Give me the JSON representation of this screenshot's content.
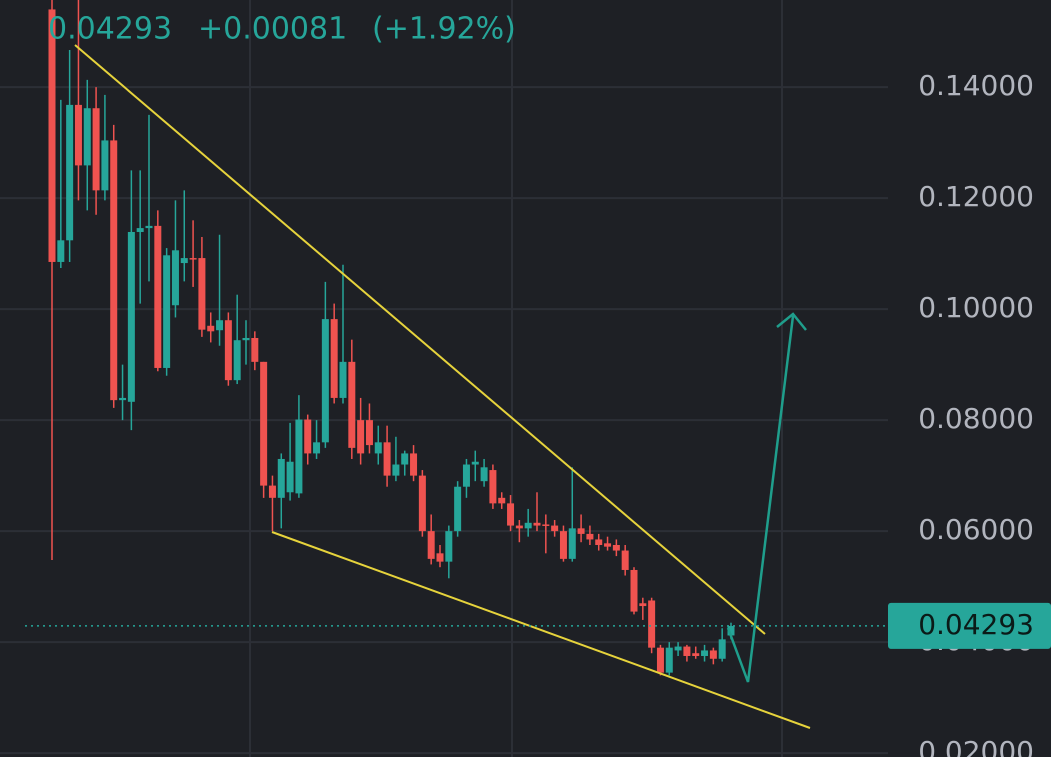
{
  "chart_data": {
    "type": "candlestick",
    "last_price": 0.04293,
    "change": "+0.00081",
    "change_pct": "(+1.92%)",
    "up_color": "#26a69a",
    "down_color": "#ef5350",
    "ylim": [
      0.0193,
      0.1557
    ],
    "yticks": [
      {
        "value": 0.02,
        "label": "0.02000"
      },
      {
        "value": 0.04,
        "label": "0.04000"
      },
      {
        "value": 0.06,
        "label": "0.06000"
      },
      {
        "value": 0.08,
        "label": "0.08000"
      },
      {
        "value": 0.1,
        "label": "0.10000"
      },
      {
        "value": 0.12,
        "label": "0.12000"
      },
      {
        "value": 0.14,
        "label": "0.14000"
      }
    ],
    "grid": true,
    "open": [
      0.154,
      0.1085,
      0.1124,
      0.1368,
      0.1259,
      0.1362,
      0.1214,
      0.1304,
      0.0836,
      0.0833,
      0.1139,
      0.1146,
      0.115,
      0.0894,
      0.1007,
      0.1083,
      0.1092,
      0.1092,
      0.097,
      0.0962,
      0.098,
      0.0872,
      0.0944,
      0.0948,
      0.0905,
      0.0682,
      0.066,
      0.067,
      0.0668,
      0.0801,
      0.074,
      0.076,
      0.0982,
      0.084,
      0.0905,
      0.08,
      0.08,
      0.074,
      0.076,
      0.07,
      0.072,
      0.074,
      0.07,
      0.06,
      0.056,
      0.0545,
      0.06,
      0.068,
      0.072,
      0.069,
      0.071,
      0.066,
      0.065,
      0.061,
      0.0605,
      0.0615,
      0.0612,
      0.061,
      0.06,
      0.055,
      0.0605,
      0.0595,
      0.0585,
      0.0578,
      0.0575,
      0.0565,
      0.053,
      0.047,
      0.0475,
      0.039,
      0.0345,
      0.0385,
      0.0392,
      0.038,
      0.0375,
      0.0385,
      0.037,
      0.0412
    ],
    "high": [
      0.1557,
      0.1377,
      0.1467,
      0.1557,
      0.1413,
      0.14,
      0.1386,
      0.1332,
      0.09,
      0.125,
      0.125,
      0.135,
      0.1178,
      0.111,
      0.1196,
      0.1214,
      0.116,
      0.113,
      0.0994,
      0.1134,
      0.0994,
      0.1026,
      0.098,
      0.096,
      0.0905,
      0.07,
      0.074,
      0.0795,
      0.0845,
      0.081,
      0.08,
      0.1049,
      0.101,
      0.108,
      0.0945,
      0.084,
      0.083,
      0.079,
      0.079,
      0.077,
      0.0745,
      0.0755,
      0.071,
      0.063,
      0.0575,
      0.061,
      0.069,
      0.073,
      0.0745,
      0.073,
      0.072,
      0.067,
      0.0665,
      0.062,
      0.064,
      0.067,
      0.063,
      0.062,
      0.061,
      0.0715,
      0.063,
      0.061,
      0.0595,
      0.059,
      0.0585,
      0.0575,
      0.0535,
      0.048,
      0.048,
      0.0395,
      0.04,
      0.04,
      0.0395,
      0.0392,
      0.0395,
      0.039,
      0.0425,
      0.0435
    ],
    "low": [
      0.0548,
      0.1074,
      0.1085,
      0.1196,
      0.1178,
      0.117,
      0.1196,
      0.0822,
      0.08,
      0.0782,
      0.101,
      0.105,
      0.0888,
      0.088,
      0.0985,
      0.105,
      0.104,
      0.095,
      0.094,
      0.0934,
      0.0862,
      0.0865,
      0.09,
      0.089,
      0.066,
      0.06,
      0.0605,
      0.0655,
      0.066,
      0.072,
      0.073,
      0.075,
      0.083,
      0.083,
      0.073,
      0.072,
      0.074,
      0.072,
      0.068,
      0.069,
      0.07,
      0.069,
      0.059,
      0.054,
      0.0535,
      0.0515,
      0.059,
      0.066,
      0.069,
      0.068,
      0.064,
      0.064,
      0.06,
      0.058,
      0.059,
      0.06,
      0.056,
      0.059,
      0.0545,
      0.0545,
      0.058,
      0.0575,
      0.0565,
      0.0565,
      0.0555,
      0.052,
      0.045,
      0.044,
      0.038,
      0.034,
      0.034,
      0.0375,
      0.0365,
      0.037,
      0.0365,
      0.036,
      0.0365,
      0.0405
    ],
    "close": [
      0.1085,
      0.1124,
      0.1368,
      0.1259,
      0.1362,
      0.1214,
      0.1304,
      0.0836,
      0.084,
      0.1139,
      0.1146,
      0.115,
      0.0894,
      0.1097,
      0.1106,
      0.1092,
      0.109,
      0.0963,
      0.096,
      0.098,
      0.0872,
      0.0944,
      0.0948,
      0.0905,
      0.0682,
      0.066,
      0.073,
      0.0725,
      0.0801,
      0.074,
      0.076,
      0.0982,
      0.084,
      0.0905,
      0.075,
      0.074,
      0.0755,
      0.076,
      0.07,
      0.072,
      0.074,
      0.07,
      0.06,
      0.055,
      0.0545,
      0.06,
      0.068,
      0.072,
      0.0725,
      0.0715,
      0.065,
      0.065,
      0.061,
      0.0605,
      0.0615,
      0.061,
      0.061,
      0.06,
      0.055,
      0.0605,
      0.0595,
      0.0585,
      0.0575,
      0.0572,
      0.0565,
      0.053,
      0.0455,
      0.0465,
      0.039,
      0.0345,
      0.039,
      0.0392,
      0.0375,
      0.0375,
      0.0385,
      0.037,
      0.0405,
      0.0429
    ]
  }
}
